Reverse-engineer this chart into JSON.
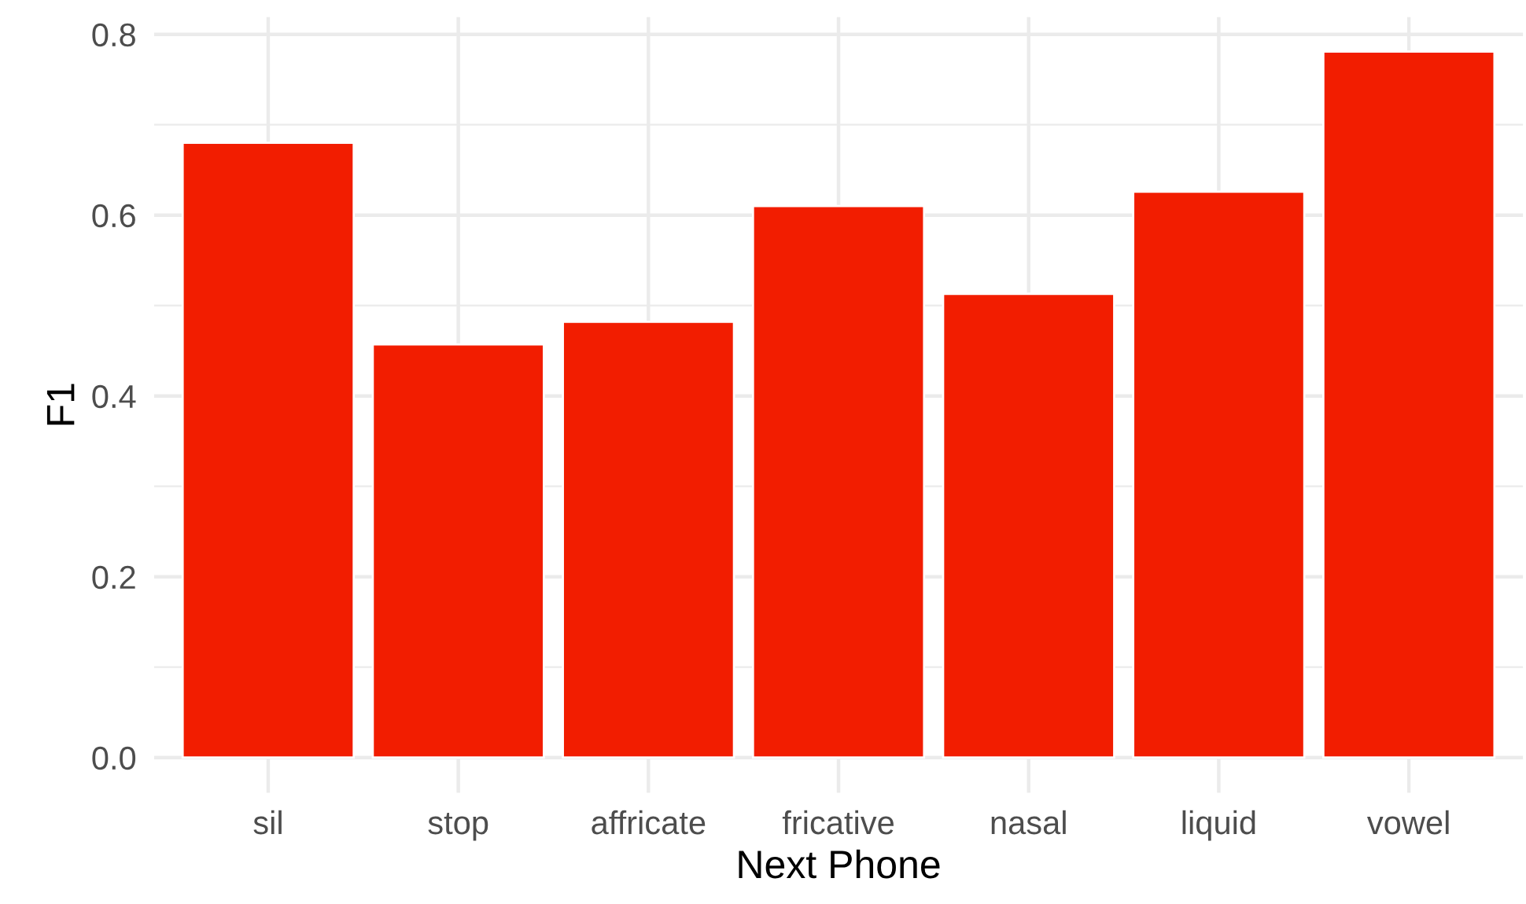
{
  "chart_data": {
    "type": "bar",
    "xlabel": "Next Phone",
    "ylabel": "F1",
    "categories": [
      "sil",
      "stop",
      "affricate",
      "fricative",
      "nasal",
      "liquid",
      "vowel"
    ],
    "values": [
      0.68,
      0.457,
      0.482,
      0.61,
      0.513,
      0.626,
      0.781
    ],
    "color": "#f21d00",
    "ylim": [
      -0.039,
      0.819
    ],
    "yticks": [
      {
        "value": 0.0,
        "label": "0.0"
      },
      {
        "value": 0.1,
        "label": null
      },
      {
        "value": 0.2,
        "label": "0.2"
      },
      {
        "value": 0.3,
        "label": null
      },
      {
        "value": 0.4,
        "label": "0.4"
      },
      {
        "value": 0.5,
        "label": null
      },
      {
        "value": 0.6,
        "label": "0.6"
      },
      {
        "value": 0.7,
        "label": null
      },
      {
        "value": 0.8,
        "label": "0.8"
      }
    ],
    "grid": true
  }
}
